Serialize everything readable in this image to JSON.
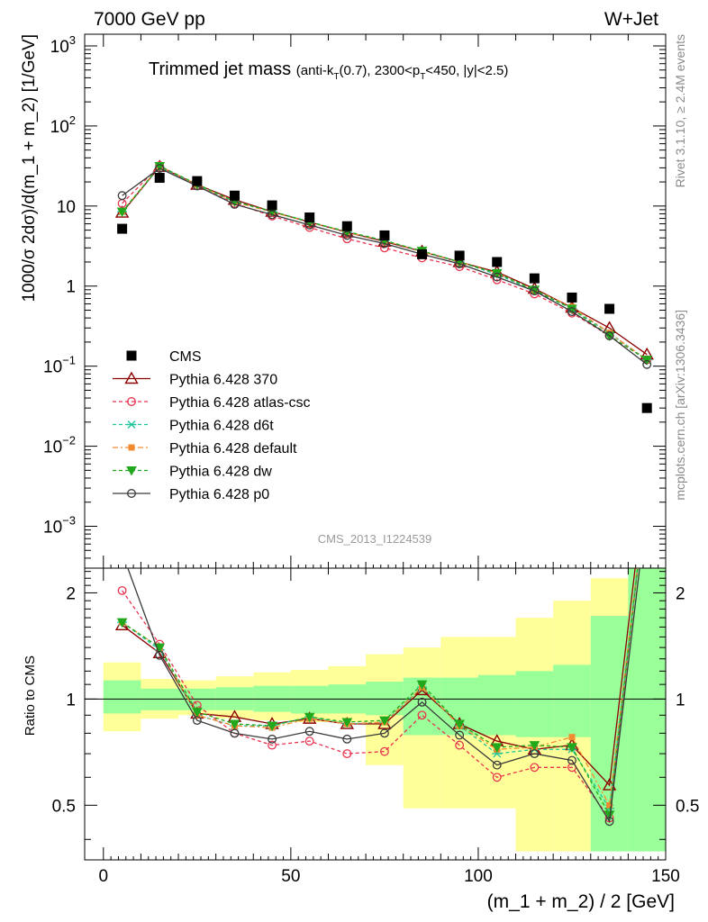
{
  "header": {
    "left": "7000 GeV pp",
    "right": "W+Jet"
  },
  "side_text": {
    "rivet": "Rivet 3.1.10, ≥ 2.4M events",
    "mcplots": "mcplots.cern.ch [arXiv:1306.3436]"
  },
  "watermark": "CMS_2013_I1224539",
  "title": {
    "main": "Trimmed jet mass",
    "sub_prefix": "(anti-k",
    "sub_kt_sub": "T",
    "sub_mid": "(0.7), 2300<p",
    "sub_pt_sub": "T",
    "sub_end": "<450, |y|<2.5)"
  },
  "legend_labels": [
    "CMS",
    "Pythia 6.428 370",
    "Pythia 6.428 atlas-csc",
    "Pythia 6.428 d6t",
    "Pythia 6.428 default",
    "Pythia 6.428 dw",
    "Pythia 6.428 p0"
  ],
  "chart_data": {
    "type": "line",
    "xlabel": "(m_1 + m_2) / 2 [GeV]",
    "ylabel": "1000/σ 2dσ)/d(m_1 + m_2) [1/GeV]",
    "ratio_ylabel": "Ratio to CMS",
    "xlim": [
      -5,
      150
    ],
    "ylim": [
      0.0003,
      1400
    ],
    "yscale": "log",
    "ratio_ylim": [
      0.35,
      2.35
    ],
    "ratio_yscale": "log",
    "x_ticks": [
      0,
      50,
      100,
      150
    ],
    "y_ticks": [
      "10^-3",
      "10^-2",
      "10^-1",
      "1",
      "10",
      "10^2",
      "10^3"
    ],
    "ratio_ticks": [
      "0.5",
      "1",
      "2"
    ],
    "x": [
      5,
      15,
      25,
      35,
      45,
      55,
      65,
      75,
      85,
      95,
      105,
      115,
      125,
      135,
      145
    ],
    "bin_edges": [
      0,
      10,
      20,
      30,
      40,
      50,
      60,
      70,
      80,
      90,
      100,
      110,
      120,
      130,
      140,
      150
    ],
    "series": [
      {
        "name": "CMS",
        "color": "#000000",
        "marker": "square",
        "values": [
          5.2,
          22.5,
          20.5,
          13.5,
          10.2,
          7.2,
          5.6,
          4.3,
          2.5,
          2.4,
          2.0,
          1.25,
          0.72,
          0.52,
          0.03
        ]
      },
      {
        "name": "Pythia 6.428 370",
        "color": "#8b0000",
        "marker": "triangle-open",
        "dash": "solid",
        "values": [
          8.3,
          31.0,
          18.5,
          12.0,
          8.5,
          6.3,
          4.7,
          3.6,
          2.7,
          2.0,
          1.5,
          0.93,
          0.54,
          0.3,
          0.14
        ]
      },
      {
        "name": "Pythia 6.428 atlas-csc",
        "color": "#e8354f",
        "marker": "circle-open",
        "dash": "4,3",
        "values": [
          10.8,
          32.0,
          18.0,
          10.8,
          7.5,
          5.4,
          3.9,
          3.0,
          2.25,
          1.75,
          1.2,
          0.8,
          0.46,
          0.24,
          0.12
        ]
      },
      {
        "name": "Pythia 6.428 d6t",
        "color": "#1fc49a",
        "marker": "asterisk",
        "dash": "4,3",
        "values": [
          8.5,
          31.0,
          18.2,
          11.3,
          8.5,
          6.4,
          4.7,
          3.7,
          2.7,
          2.0,
          1.4,
          0.88,
          0.52,
          0.26,
          0.12
        ]
      },
      {
        "name": "Pythia 6.428 default",
        "color": "#f28a30",
        "marker": "square-filled",
        "dash": "6,3,2,3",
        "values": [
          8.5,
          31.5,
          18.5,
          11.3,
          8.4,
          6.3,
          4.7,
          3.7,
          2.7,
          2.0,
          1.45,
          0.9,
          0.55,
          0.26,
          0.12
        ]
      },
      {
        "name": "Pythia 6.428 dw",
        "color": "#22a81c",
        "marker": "triangle-down",
        "dash": "4,3",
        "values": [
          8.5,
          31.5,
          18.8,
          11.4,
          8.6,
          6.3,
          4.8,
          3.7,
          2.75,
          2.0,
          1.45,
          0.9,
          0.52,
          0.24,
          0.12
        ]
      },
      {
        "name": "Pythia 6.428 p0",
        "color": "#3a3a3a",
        "marker": "circle-open",
        "dash": "solid",
        "values": [
          13.5,
          29.5,
          17.8,
          10.5,
          7.8,
          5.8,
          4.3,
          3.4,
          2.5,
          1.9,
          1.3,
          0.87,
          0.48,
          0.24,
          0.105
        ]
      }
    ],
    "ratio_series": [
      {
        "name": "Pythia 6.428 370",
        "values": [
          1.62,
          1.35,
          0.91,
          0.89,
          0.85,
          0.88,
          0.85,
          0.85,
          1.06,
          0.85,
          0.76,
          0.72,
          0.74,
          0.57,
          4.5
        ]
      },
      {
        "name": "Pythia 6.428 atlas-csc",
        "values": [
          2.03,
          1.43,
          0.96,
          0.8,
          0.74,
          0.76,
          0.7,
          0.71,
          0.9,
          0.74,
          0.6,
          0.64,
          0.64,
          0.46,
          4.0
        ]
      },
      {
        "name": "Pythia 6.428 d6t",
        "values": [
          1.65,
          1.38,
          0.9,
          0.84,
          0.84,
          0.89,
          0.85,
          0.86,
          1.08,
          0.84,
          0.7,
          0.72,
          0.72,
          0.49,
          4.0
        ]
      },
      {
        "name": "Pythia 6.428 default",
        "values": [
          1.65,
          1.4,
          0.9,
          0.84,
          0.83,
          0.88,
          0.85,
          0.86,
          1.08,
          0.84,
          0.72,
          0.73,
          0.78,
          0.5,
          4.0
        ]
      },
      {
        "name": "Pythia 6.428 dw",
        "values": [
          1.65,
          1.4,
          0.92,
          0.85,
          0.84,
          0.89,
          0.86,
          0.87,
          1.1,
          0.85,
          0.73,
          0.74,
          0.73,
          0.47,
          4.0
        ]
      },
      {
        "name": "Pythia 6.428 p0",
        "values": [
          2.6,
          1.33,
          0.87,
          0.8,
          0.77,
          0.81,
          0.77,
          0.8,
          0.98,
          0.79,
          0.65,
          0.7,
          0.67,
          0.45,
          3.5
        ]
      }
    ],
    "ratio_bands": {
      "green": [
        [
          0.91,
          1.13
        ],
        [
          0.93,
          1.07
        ],
        [
          0.93,
          1.07
        ],
        [
          0.93,
          1.08
        ],
        [
          0.92,
          1.09
        ],
        [
          0.91,
          1.09
        ],
        [
          0.91,
          1.1
        ],
        [
          0.9,
          1.12
        ],
        [
          0.79,
          1.15
        ],
        [
          0.79,
          1.15
        ],
        [
          0.79,
          1.17
        ],
        [
          0.78,
          1.2
        ],
        [
          0.78,
          1.25
        ],
        [
          0.37,
          1.72
        ],
        [
          0.37,
          2.35
        ]
      ],
      "yellow": [
        [
          0.81,
          1.27
        ],
        [
          0.88,
          1.14
        ],
        [
          0.9,
          1.13
        ],
        [
          0.88,
          1.16
        ],
        [
          0.87,
          1.19
        ],
        [
          0.86,
          1.21
        ],
        [
          0.86,
          1.24
        ],
        [
          0.65,
          1.34
        ],
        [
          0.49,
          1.4
        ],
        [
          0.49,
          1.5
        ],
        [
          0.49,
          1.5
        ],
        [
          0.37,
          1.7
        ],
        [
          0.37,
          1.9
        ],
        [
          0.37,
          2.2
        ],
        [
          0.37,
          2.35
        ]
      ]
    }
  }
}
